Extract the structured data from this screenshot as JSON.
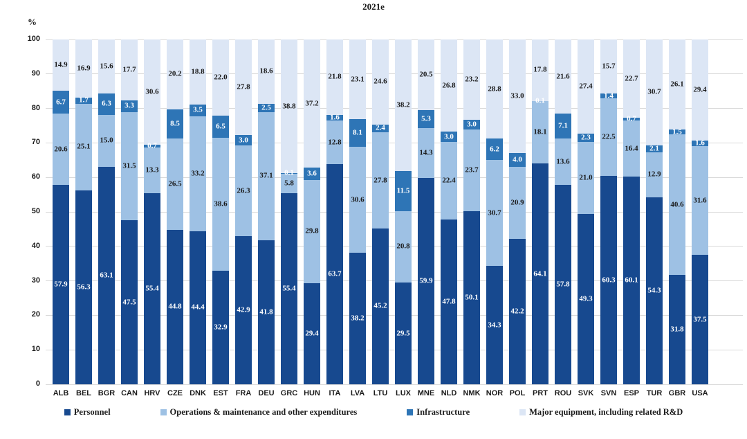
{
  "chart_data": {
    "type": "bar",
    "stacked": true,
    "title": "2021e",
    "ylabel": "%",
    "ylim": [
      0,
      100
    ],
    "yticks": [
      0,
      10,
      20,
      30,
      40,
      50,
      60,
      70,
      80,
      90,
      100
    ],
    "grid": true,
    "legend_position": "bottom",
    "categories": [
      "ALB",
      "BEL",
      "BGR",
      "CAN",
      "HRV",
      "CZE",
      "DNK",
      "EST",
      "FRA",
      "DEU",
      "GRC",
      "HUN",
      "ITA",
      "LVA",
      "LTU",
      "LUX",
      "MNE",
      "NLD",
      "NMK",
      "NOR",
      "POL",
      "PRT",
      "ROU",
      "SVK",
      "SVN",
      "ESP",
      "TUR",
      "GBR",
      "USA"
    ],
    "series": [
      {
        "name": "Personnel",
        "color": "#17498f",
        "label_color": "#ffffff",
        "values": [
          57.9,
          56.3,
          63.1,
          47.5,
          55.4,
          44.8,
          44.4,
          32.9,
          42.9,
          41.8,
          55.4,
          29.4,
          63.7,
          38.2,
          45.2,
          29.5,
          59.9,
          47.8,
          50.1,
          34.3,
          42.2,
          64.1,
          57.8,
          49.3,
          60.3,
          60.1,
          54.3,
          31.8,
          37.5
        ]
      },
      {
        "name": "Operations & maintenance and other expenditures",
        "color": "#9ec1e4",
        "label_color": "#1a1a1a",
        "values": [
          20.6,
          25.1,
          15.0,
          31.5,
          13.3,
          26.5,
          33.2,
          38.6,
          26.3,
          37.1,
          5.8,
          29.8,
          12.8,
          30.6,
          27.8,
          20.8,
          14.3,
          22.4,
          23.7,
          30.7,
          20.9,
          18.1,
          13.6,
          21.0,
          22.5,
          16.4,
          12.9,
          40.6,
          31.6
        ]
      },
      {
        "name": "Infrastructure",
        "color": "#2e75b6",
        "label_color": "#ffffff",
        "values": [
          6.7,
          1.7,
          6.3,
          3.3,
          0.7,
          8.5,
          3.5,
          6.5,
          3.0,
          2.5,
          0.1,
          3.6,
          1.6,
          8.1,
          2.4,
          11.5,
          5.3,
          3.0,
          3.0,
          6.2,
          4.0,
          0.1,
          7.1,
          2.3,
          1.4,
          0.7,
          2.1,
          1.5,
          1.6
        ]
      },
      {
        "name": "Major equipment, including related R&D",
        "color": "#dce6f5",
        "label_color": "#1a1a1a",
        "values": [
          14.9,
          16.9,
          15.6,
          17.7,
          30.6,
          20.2,
          18.8,
          22.0,
          27.8,
          18.6,
          38.8,
          37.2,
          21.8,
          23.1,
          24.6,
          38.2,
          20.5,
          26.8,
          23.2,
          28.8,
          33.0,
          17.8,
          21.6,
          27.4,
          15.7,
          22.7,
          30.7,
          26.1,
          29.4
        ]
      }
    ]
  }
}
